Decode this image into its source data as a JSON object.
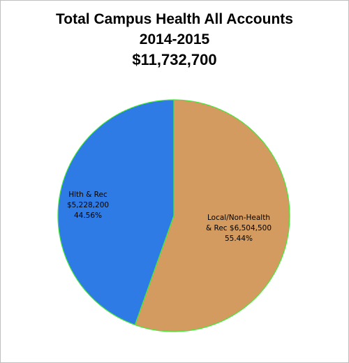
{
  "chart_data": {
    "type": "pie",
    "title_lines": [
      "Total Campus Health All Accounts",
      "2014-2015",
      "$11,732,700"
    ],
    "slices": [
      {
        "label_lines": [
          "Local/Non-Health",
          "& Rec $6,504,500",
          "55.44%"
        ],
        "value": 6504500,
        "percent": 55.44,
        "color": "#d39b5f"
      },
      {
        "label_lines": [
          "Hlth & Rec",
          "$5,228,200",
          "44.56%"
        ],
        "value": 5228200,
        "percent": 44.56,
        "color": "#2f7be6"
      }
    ],
    "slice_border_color": "#44e83a",
    "legend": "none"
  }
}
